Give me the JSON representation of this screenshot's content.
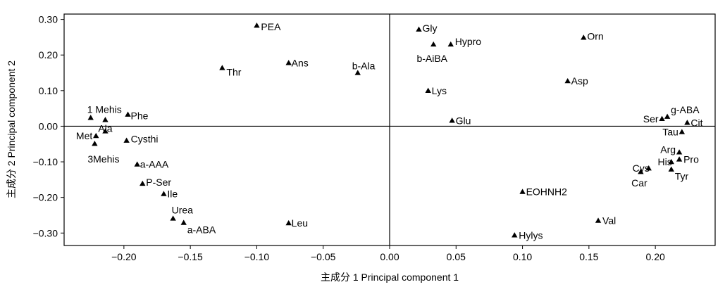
{
  "chart_data": {
    "type": "scatter",
    "xlabel": "主成分 1 Principal component 1",
    "ylabel": "主成分 2 Principal component 2",
    "xlim": [
      -0.245,
      0.245
    ],
    "ylim": [
      -0.335,
      0.315
    ],
    "x_ticks": [
      -0.2,
      -0.15,
      -0.1,
      -0.05,
      0.0,
      0.05,
      0.1,
      0.15,
      0.2
    ],
    "x_tick_labels": [
      "−0.20",
      "−0.15",
      "−0.10",
      "−0.05",
      "0.00",
      "0.05",
      "0.10",
      "0.15",
      "0.20"
    ],
    "y_ticks": [
      0.3,
      0.2,
      0.1,
      0.0,
      -0.1,
      -0.2,
      -0.3
    ],
    "y_tick_labels": [
      "0.30",
      "0.20",
      "0.10",
      "0.00",
      "−0.10",
      "−0.20",
      "−0.30"
    ],
    "reference_lines": {
      "x": 0,
      "y": 0
    },
    "marker": "filled-triangle",
    "points": [
      {
        "label": "PEA",
        "x": -0.1,
        "y": 0.283
      },
      {
        "label": "Ans",
        "x": -0.076,
        "y": 0.178
      },
      {
        "label": "b-Ala",
        "x": -0.024,
        "y": 0.15
      },
      {
        "label": "Thr",
        "x": -0.126,
        "y": 0.164
      },
      {
        "label": "1 Mehis",
        "x": -0.225,
        "y": 0.024
      },
      {
        "label": "",
        "x": -0.214,
        "y": 0.018
      },
      {
        "label": "Phe",
        "x": -0.197,
        "y": 0.033
      },
      {
        "label": "Met",
        "x": -0.221,
        "y": -0.027
      },
      {
        "label": "Ala",
        "x": -0.214,
        "y": -0.014
      },
      {
        "label": "3Mehis",
        "x": -0.222,
        "y": -0.049
      },
      {
        "label": "Cysthi",
        "x": -0.198,
        "y": -0.04
      },
      {
        "label": "a-AAA",
        "x": -0.19,
        "y": -0.107
      },
      {
        "label": "P-Ser",
        "x": -0.186,
        "y": -0.161
      },
      {
        "label": "Ile",
        "x": -0.17,
        "y": -0.19
      },
      {
        "label": "Urea",
        "x": -0.163,
        "y": -0.259
      },
      {
        "label": "a-ABA",
        "x": -0.155,
        "y": -0.271
      },
      {
        "label": "Leu",
        "x": -0.076,
        "y": -0.272
      },
      {
        "label": "Gly",
        "x": 0.022,
        "y": 0.272
      },
      {
        "label": "b-AiBA",
        "x": 0.033,
        "y": 0.23
      },
      {
        "label": "Hypro",
        "x": 0.046,
        "y": 0.23
      },
      {
        "label": "Orn",
        "x": 0.146,
        "y": 0.249
      },
      {
        "label": "Asp",
        "x": 0.134,
        "y": 0.127
      },
      {
        "label": "Lys",
        "x": 0.029,
        "y": 0.1
      },
      {
        "label": "Glu",
        "x": 0.047,
        "y": 0.016
      },
      {
        "label": "Ser",
        "x": 0.205,
        "y": 0.021
      },
      {
        "label": "g-ABA",
        "x": 0.209,
        "y": 0.027
      },
      {
        "label": "Cit",
        "x": 0.224,
        "y": 0.01
      },
      {
        "label": "Tau",
        "x": 0.22,
        "y": -0.016
      },
      {
        "label": "Arg",
        "x": 0.218,
        "y": -0.073
      },
      {
        "label": "Pro",
        "x": 0.218,
        "y": -0.093
      },
      {
        "label": "His",
        "x": 0.212,
        "y": -0.1
      },
      {
        "label": "Cys",
        "x": 0.195,
        "y": -0.118
      },
      {
        "label": "Car",
        "x": 0.189,
        "y": -0.128
      },
      {
        "label": "Tyr",
        "x": 0.212,
        "y": -0.121
      },
      {
        "label": "EOHNH2",
        "x": 0.1,
        "y": -0.184
      },
      {
        "label": "Val",
        "x": 0.157,
        "y": -0.265
      },
      {
        "label": "Hylys",
        "x": 0.094,
        "y": -0.306
      }
    ]
  }
}
